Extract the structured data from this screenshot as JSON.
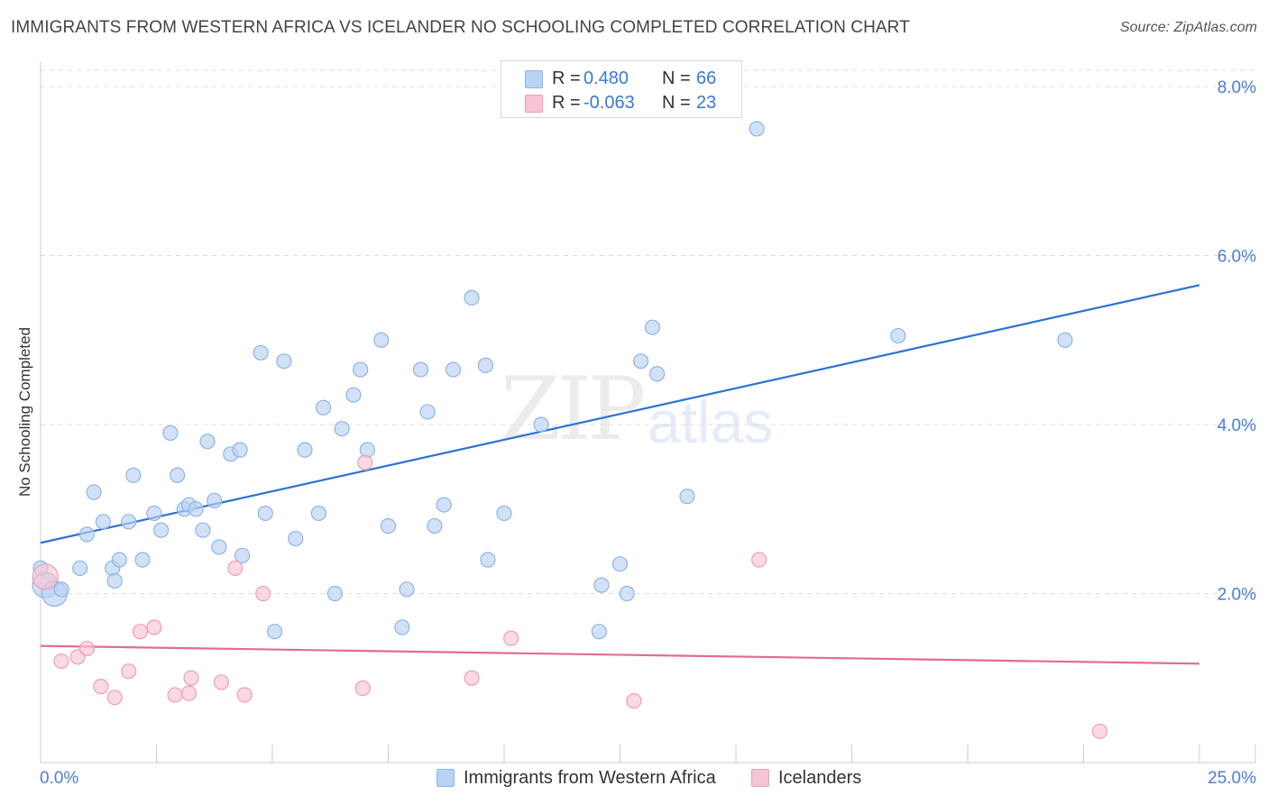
{
  "title": "IMMIGRANTS FROM WESTERN AFRICA VS ICELANDER NO SCHOOLING COMPLETED CORRELATION CHART",
  "source": "Source: ZipAtlas.com",
  "watermark": {
    "zip": "ZIP",
    "atlas": "atlas"
  },
  "colors": {
    "blue_fill": "#b8d2f3",
    "blue_stroke": "#8fb4e6",
    "blue_line": "#2e72d2",
    "pink_fill": "#f6c4d3",
    "pink_stroke": "#ee9fb8",
    "pink_line": "#e46b93",
    "grid": "#dcdcdc",
    "tick_text": "#4a7fd0"
  },
  "legend": {
    "rows": [
      {
        "r_label": "R =",
        "r_value": "0.480",
        "n_label": "N =",
        "n_value": "66"
      },
      {
        "r_label": "R =",
        "r_value": "-0.063",
        "n_label": "N =",
        "n_value": "23"
      }
    ]
  },
  "bottom_legend": [
    {
      "label": "Immigrants from Western Africa"
    },
    {
      "label": "Icelanders"
    }
  ],
  "chart_data": {
    "type": "scatter",
    "title": "IMMIGRANTS FROM WESTERN AFRICA VS ICELANDER NO SCHOOLING COMPLETED CORRELATION CHART",
    "xlabel": "",
    "ylabel": "No Schooling Completed",
    "xlim": [
      0,
      25
    ],
    "ylim": [
      0,
      8
    ],
    "x_tick_labels": [
      "0.0%",
      "25.0%"
    ],
    "y_ticks": [
      2,
      4,
      6,
      8
    ],
    "y_tick_labels": [
      "2.0%",
      "4.0%",
      "6.0%",
      "8.0%"
    ],
    "grid": true,
    "legend_position": "top-center",
    "series": [
      {
        "name": "Immigrants from Western Africa",
        "r": 0.48,
        "n": 66,
        "trend": {
          "x": [
            0,
            25
          ],
          "y": [
            2.6,
            5.65
          ]
        },
        "points": [
          [
            0.1,
            2.1,
            "big"
          ],
          [
            0.3,
            2.0,
            "big"
          ],
          [
            0.45,
            2.05
          ],
          [
            0.85,
            2.3
          ],
          [
            1.0,
            2.7
          ],
          [
            1.15,
            3.2
          ],
          [
            1.35,
            2.85
          ],
          [
            1.55,
            2.3
          ],
          [
            1.6,
            2.15
          ],
          [
            1.7,
            2.4
          ],
          [
            1.9,
            2.85
          ],
          [
            2.0,
            3.4
          ],
          [
            2.2,
            2.4
          ],
          [
            2.45,
            2.95
          ],
          [
            2.6,
            2.75
          ],
          [
            2.8,
            3.9
          ],
          [
            2.95,
            3.4
          ],
          [
            3.1,
            3.0
          ],
          [
            3.2,
            3.05
          ],
          [
            3.5,
            2.75
          ],
          [
            3.6,
            3.8
          ],
          [
            3.75,
            3.1
          ],
          [
            3.85,
            2.55
          ],
          [
            4.1,
            3.65
          ],
          [
            4.3,
            3.7
          ],
          [
            4.35,
            2.45
          ],
          [
            4.75,
            4.85
          ],
          [
            4.85,
            2.95
          ],
          [
            5.05,
            1.55
          ],
          [
            5.25,
            4.75
          ],
          [
            5.5,
            2.65
          ],
          [
            5.7,
            3.7
          ],
          [
            6.0,
            2.95
          ],
          [
            6.1,
            4.2
          ],
          [
            6.35,
            2.0
          ],
          [
            6.5,
            3.95
          ],
          [
            6.75,
            4.35
          ],
          [
            6.9,
            4.65
          ],
          [
            7.05,
            3.7
          ],
          [
            7.35,
            5.0
          ],
          [
            7.5,
            2.8
          ],
          [
            7.8,
            1.6
          ],
          [
            7.9,
            2.05
          ],
          [
            8.2,
            4.65
          ],
          [
            8.35,
            4.15
          ],
          [
            8.5,
            2.8
          ],
          [
            8.7,
            3.05
          ],
          [
            8.9,
            4.65
          ],
          [
            9.3,
            5.5
          ],
          [
            9.6,
            4.7
          ],
          [
            9.65,
            2.4
          ],
          [
            10.0,
            2.95
          ],
          [
            10.8,
            4.0
          ],
          [
            12.05,
            1.55
          ],
          [
            12.1,
            2.1
          ],
          [
            12.5,
            2.35
          ],
          [
            12.65,
            2.0
          ],
          [
            12.95,
            4.75
          ],
          [
            13.2,
            5.15
          ],
          [
            13.3,
            4.6
          ],
          [
            13.95,
            3.15
          ],
          [
            15.45,
            7.5
          ],
          [
            18.5,
            5.05
          ],
          [
            22.1,
            5.0
          ],
          [
            0.0,
            2.3
          ],
          [
            3.35,
            3.0
          ]
        ]
      },
      {
        "name": "Icelanders",
        "r": -0.063,
        "n": 23,
        "trend": {
          "x": [
            0,
            25
          ],
          "y": [
            1.38,
            1.17
          ]
        },
        "points": [
          [
            0.1,
            2.2,
            "big"
          ],
          [
            0.45,
            1.2
          ],
          [
            0.8,
            1.25
          ],
          [
            1.0,
            1.35
          ],
          [
            1.3,
            0.9
          ],
          [
            1.6,
            0.77
          ],
          [
            1.9,
            1.08
          ],
          [
            2.15,
            1.55
          ],
          [
            2.45,
            1.6
          ],
          [
            2.9,
            0.8
          ],
          [
            3.2,
            0.82
          ],
          [
            3.25,
            1.0
          ],
          [
            3.9,
            0.95
          ],
          [
            4.2,
            2.3
          ],
          [
            4.4,
            0.8
          ],
          [
            4.8,
            2.0
          ],
          [
            6.95,
            0.88
          ],
          [
            7.0,
            3.55
          ],
          [
            9.3,
            1.0
          ],
          [
            10.15,
            1.47
          ],
          [
            12.8,
            0.73
          ],
          [
            15.5,
            2.4
          ],
          [
            22.85,
            0.37
          ]
        ]
      }
    ]
  }
}
